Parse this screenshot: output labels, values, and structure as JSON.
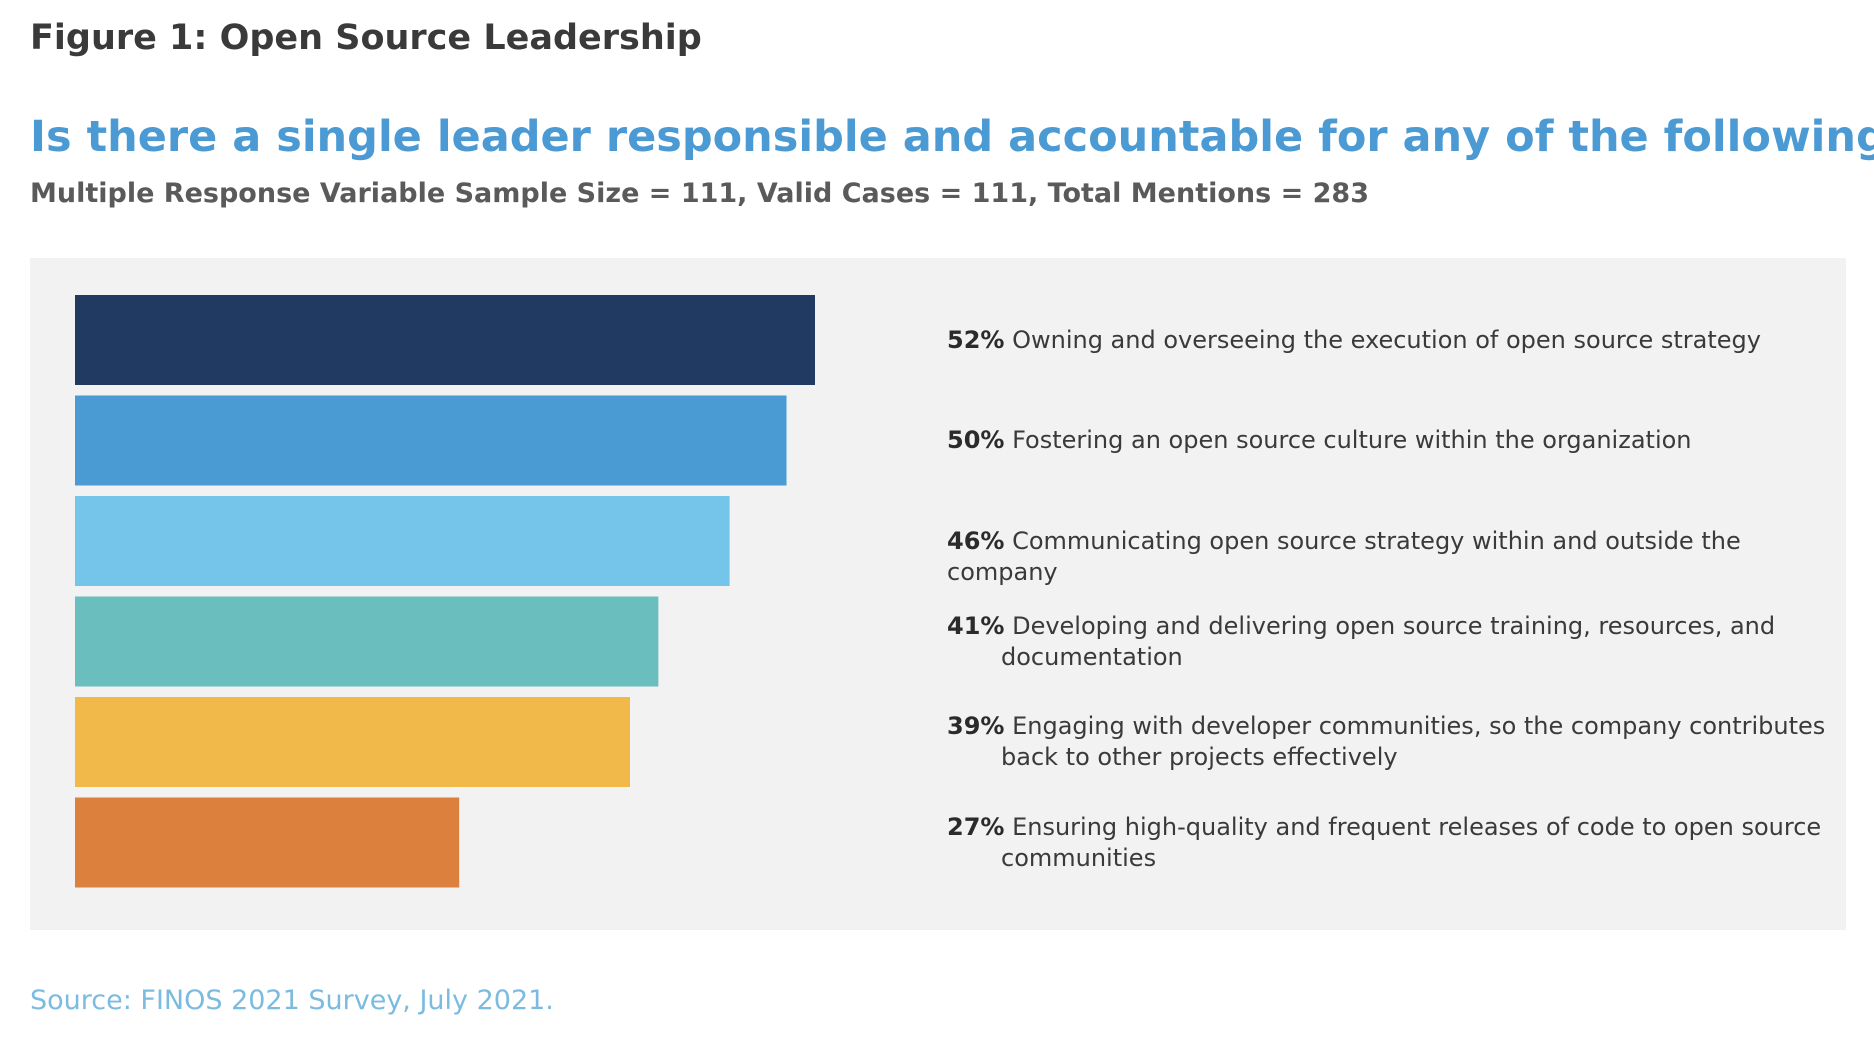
{
  "header": {
    "figure_label": "Figure 1: Open Source Leadership"
  },
  "chart_data": {
    "type": "bar",
    "orientation": "horizontal",
    "title": "Is there a single leader responsible and accountable for any of the following?",
    "subtitle": "Multiple Response Variable Sample Size = 111, Valid Cases = 111, Total Mentions = 283",
    "xlabel": "",
    "ylabel": "",
    "grid": false,
    "categories": [
      "Owning and overseeing the execution of open source strategy",
      "Fostering an open source culture within the organization",
      "Communicating open source strategy within and outside the company",
      "Developing and delivering open source training, resources, and documentation",
      "Engaging with developer communities, so the company contributes back to other projects effectively",
      "Ensuring high-quality and frequent releases of code to open source communities"
    ],
    "values": [
      52,
      50,
      46,
      41,
      39,
      27
    ],
    "value_labels": [
      "52%",
      "50%",
      "46%",
      "41%",
      "39%",
      "27%"
    ],
    "label_lines": [
      [
        "Owning and overseeing the execution of open source strategy"
      ],
      [
        "Fostering an open source culture within the organization"
      ],
      [
        "Communicating open source strategy within and outside the company"
      ],
      [
        "Developing and delivering open source training, resources, and",
        "documentation"
      ],
      [
        "Engaging with developer communities, so the company contributes",
        "back to other projects effectively"
      ],
      [
        "Ensuring high-quality and frequent releases of code to open source",
        "communities"
      ]
    ],
    "colors": [
      "#213a62",
      "#4a9ad4",
      "#74c5e9",
      "#6abfbe",
      "#f1b949",
      "#dc803d"
    ],
    "panel_background": "#f2f2f2"
  },
  "footer": {
    "source": "Source: FINOS 2021 Survey, July 2021."
  }
}
